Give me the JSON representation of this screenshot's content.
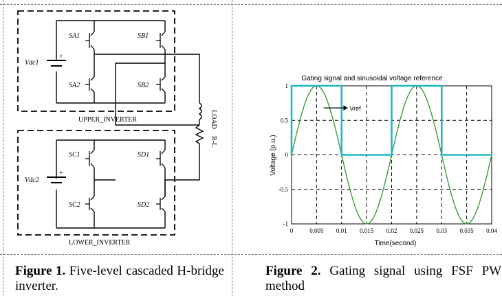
{
  "figure1": {
    "labels": {
      "vdc1": "Vdc1",
      "vdc2": "Vdc2",
      "sa1": "SA1",
      "sa2": "SA2",
      "sb1": "SB1",
      "sb2": "SB2",
      "sc1": "SC1",
      "sc2": "SC2",
      "sd1": "SD1",
      "sd2": "SD2",
      "upper": "UPPER_INVERTER",
      "lower": "LOWER_INVERTER",
      "rl": "R-L",
      "load": "LOAD"
    },
    "caption_bold": "Figure 1.",
    "caption_text": " Five-level cascaded H-bridge inverter."
  },
  "figure2": {
    "caption_bold": "Figure 2.",
    "caption_text": " Gating signal using FSF PWM method",
    "chart_data": {
      "type": "line",
      "title": "Gating signal and sinusoidal voltage reference",
      "xlabel": "Time(second)",
      "ylabel": "Voltage (p.u.)",
      "xlim": [
        0,
        0.04
      ],
      "ylim": [
        -1,
        1
      ],
      "xticks": [
        "0",
        "0.005",
        "0.01",
        "0.015",
        "0.02",
        "0.025",
        "0.03",
        "0.035",
        "0.04"
      ],
      "yticks": [
        "-1",
        "-0.5",
        "0",
        "0.5",
        "1"
      ],
      "grid": true,
      "annotation": "Vref",
      "series": [
        {
          "name": "Vref",
          "kind": "sine",
          "amplitude": 1,
          "frequency_hz": 50,
          "color": "#3a9a3a"
        },
        {
          "kind": "gating",
          "color": "#1fb7c7",
          "x": [
            0,
            0,
            0.01,
            0.01,
            0.02,
            0.02,
            0.03,
            0.03,
            0.04
          ],
          "y": [
            0,
            1,
            1,
            0,
            0,
            1,
            1,
            0,
            0
          ]
        }
      ]
    }
  }
}
